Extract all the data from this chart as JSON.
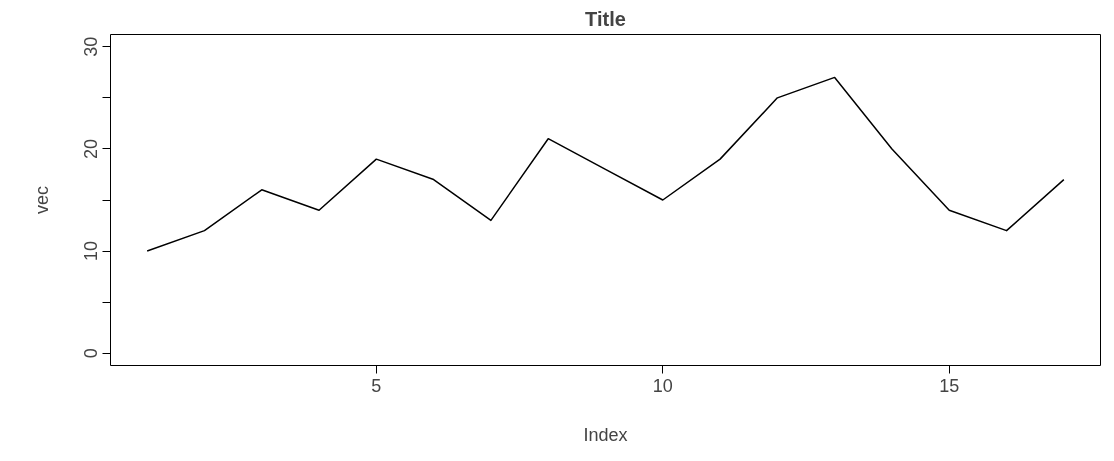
{
  "chart_data": {
    "type": "line",
    "title": "Title",
    "xlabel": "Index",
    "ylabel": "vec",
    "x": [
      1,
      2,
      3,
      4,
      5,
      6,
      7,
      8,
      9,
      10,
      11,
      12,
      13,
      14,
      15,
      16,
      17
    ],
    "series": [
      {
        "color": "#000000",
        "values": [
          10,
          12,
          16,
          14,
          19,
          17,
          13,
          21,
          18,
          15,
          19,
          25,
          27,
          20,
          14,
          12,
          17
        ]
      }
    ],
    "xlim": [
      0.36,
      17.64
    ],
    "ylim": [
      -1.2,
      31.2
    ],
    "xticks": [
      5,
      10,
      15
    ],
    "yticks": [
      0,
      {
        "value": 5,
        "label": null
      },
      10,
      {
        "value": 15,
        "label": null
      },
      20,
      {
        "value": 25,
        "label": null
      },
      30
    ],
    "grid": false,
    "marker": "none",
    "line_style": "solid"
  }
}
